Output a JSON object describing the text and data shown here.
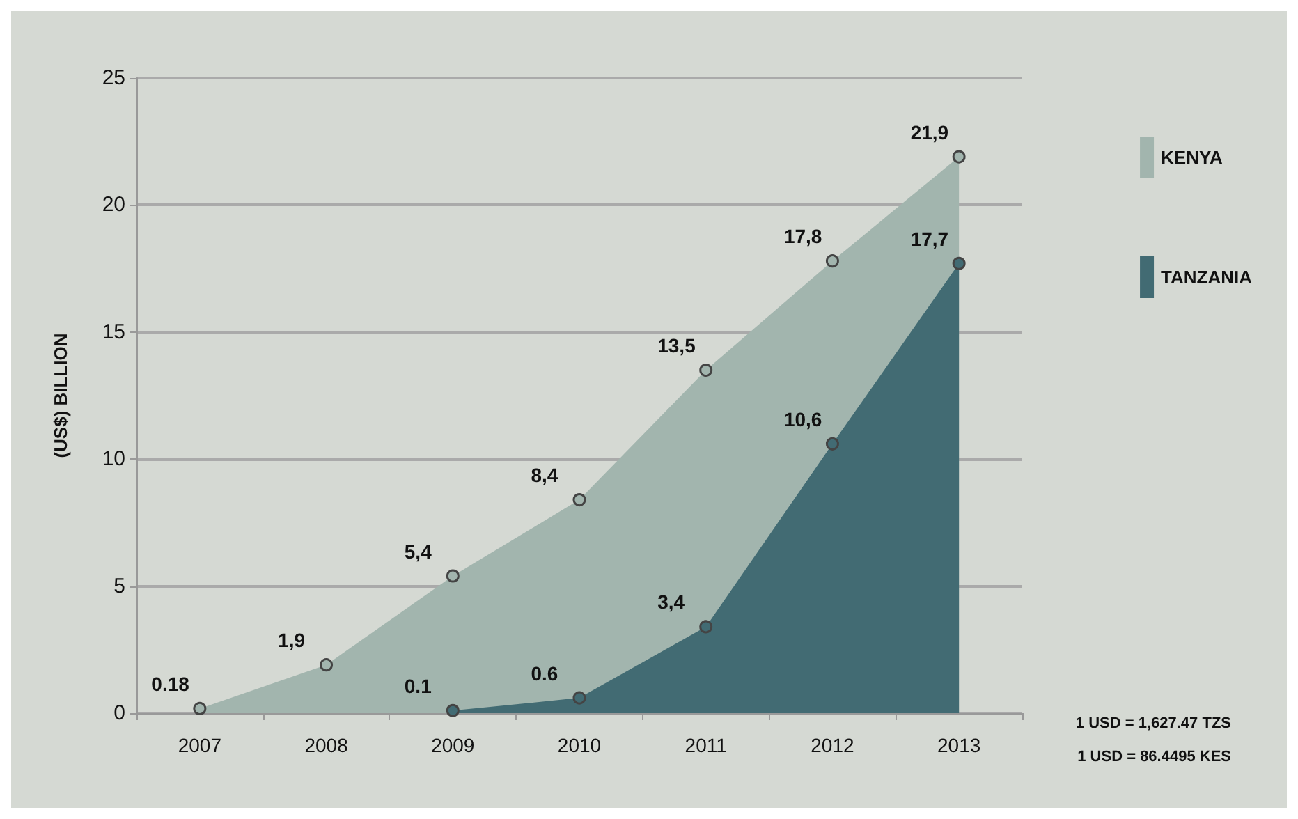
{
  "chart_data": {
    "type": "area",
    "ylabel": "(US$) BILLION",
    "categories": [
      "2007",
      "2008",
      "2009",
      "2010",
      "2011",
      "2012",
      "2013"
    ],
    "series": [
      {
        "name": "KENYA",
        "color": "#a2b5ae",
        "values": [
          0.18,
          1.9,
          5.4,
          8.4,
          13.5,
          17.8,
          21.9
        ],
        "value_labels": [
          "0.18",
          "1,9",
          "5,4",
          "8,4",
          "13,5",
          "17,8",
          "21,9"
        ]
      },
      {
        "name": "TANZANIA",
        "color": "#426b73",
        "values": [
          null,
          null,
          0.1,
          0.6,
          3.4,
          10.6,
          17.7
        ],
        "value_labels": [
          null,
          null,
          "0.1",
          "0.6",
          "3,4",
          "10,6",
          "17,7"
        ]
      }
    ],
    "ylim": [
      0,
      25
    ],
    "yticks": [
      0,
      5,
      10,
      15,
      20,
      25
    ],
    "grid": "y",
    "legend": "top right",
    "marker": "circle",
    "annotations": [
      "1 USD = 1,627.47 TZS",
      "1 USD = 86.4495 KES"
    ]
  }
}
